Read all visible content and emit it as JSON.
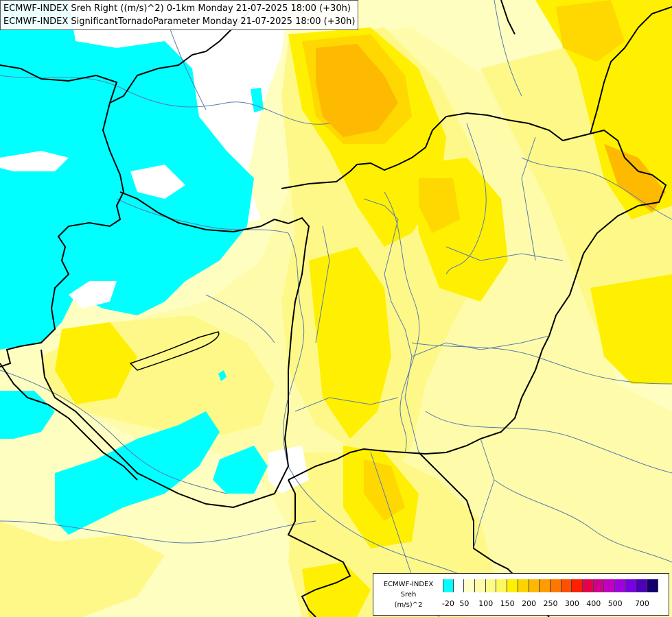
{
  "title_lines": [
    "ECMWF-INDEX Sreh Right ((m/s)^2) 0-1km Monday 21-07-2025 18:00 (+30h)",
    "ECMWF-INDEX SignificantTornadoParameter Monday 21-07-2025 18:00 (+30h)"
  ],
  "legend": {
    "source": "ECMWF-INDEX",
    "variable": "Sreh",
    "unit": "(m/s)^2",
    "colors": [
      "#00ffff",
      "#ffffff",
      "#fefec8",
      "#fefca8",
      "#fefa88",
      "#fef860",
      "#fef000",
      "#fed400",
      "#feb800",
      "#fe9c00",
      "#fe7800",
      "#fe5000",
      "#fe2000",
      "#e8004c",
      "#d0008c",
      "#c000c0",
      "#a000e0",
      "#7800e0",
      "#4c00b8",
      "#14006c"
    ],
    "ticks": [
      "-20",
      "50",
      "100",
      "150",
      "200",
      "250",
      "300",
      "400",
      "500",
      "700"
    ]
  },
  "map_colors": {
    "background": "#fefec0",
    "cyan": "#00ffff",
    "white": "#ffffff",
    "pale_yellow": "#fefcaa",
    "light_yellow": "#fef888",
    "yellow": "#fef000",
    "deep_yellow": "#fed800",
    "orange": "#feba00",
    "border_color": "#000000",
    "river_color": "#5a7ab0"
  }
}
